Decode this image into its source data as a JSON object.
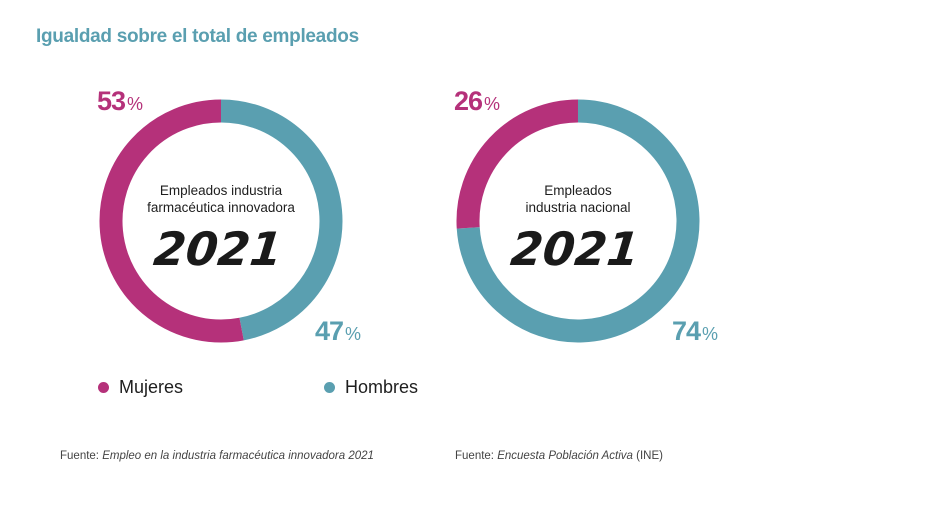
{
  "title": "Igualdad sobre el total de empleados",
  "colors": {
    "mujeres": "#b5317a",
    "hombres": "#5a9fb0",
    "title": "#5a9fb0"
  },
  "legend": {
    "mujeres": "Mujeres",
    "hombres": "Hombres"
  },
  "sources": [
    {
      "prefix": "Fuente: ",
      "italic": "Empleo en la industria farmacéutica innovadora 2021",
      "suffix": ""
    },
    {
      "prefix": "Fuente: ",
      "italic": "Encuesta Población Activa",
      "suffix": " (INE)"
    }
  ],
  "chart_data": [
    {
      "type": "pie",
      "style": "donut",
      "center_label": [
        "Empleados industria",
        "farmacéutica innovadora"
      ],
      "year": "2021",
      "series": [
        {
          "name": "Mujeres",
          "value": 53,
          "label": "53",
          "unit": "%"
        },
        {
          "name": "Hombres",
          "value": 47,
          "label": "47",
          "unit": "%"
        }
      ]
    },
    {
      "type": "pie",
      "style": "donut",
      "center_label": [
        "Empleados",
        "industria nacional"
      ],
      "year": "2021",
      "series": [
        {
          "name": "Mujeres",
          "value": 26,
          "label": "26",
          "unit": "%"
        },
        {
          "name": "Hombres",
          "value": 74,
          "label": "74",
          "unit": "%"
        }
      ]
    }
  ]
}
